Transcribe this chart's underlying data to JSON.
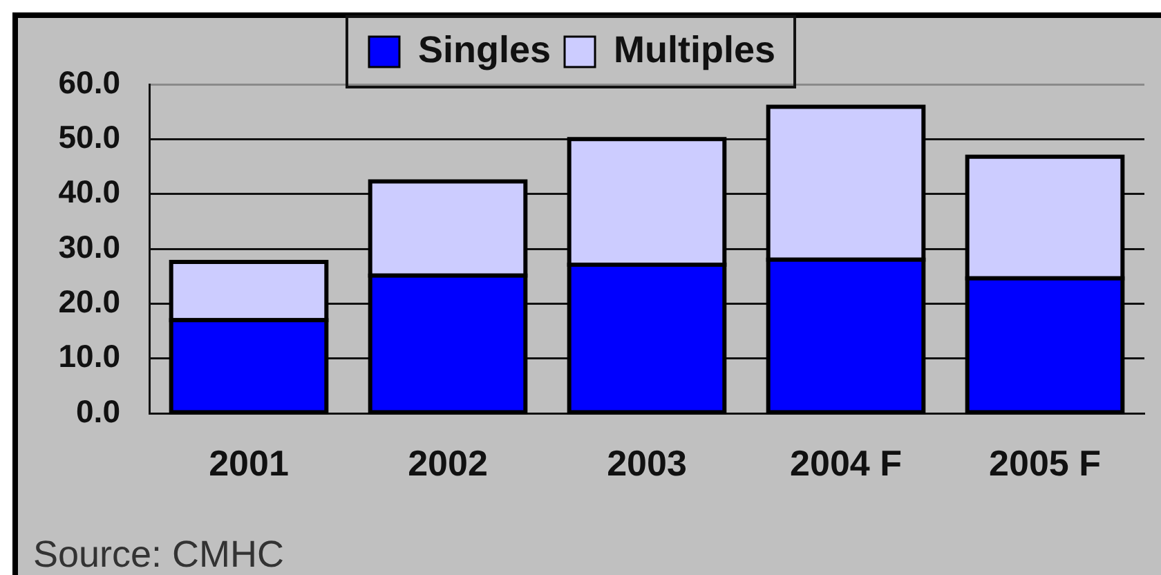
{
  "chart_data": {
    "type": "bar",
    "stacked": true,
    "categories": [
      "2001",
      "2002",
      "2003",
      "2004 F",
      "2005 F"
    ],
    "series": [
      {
        "name": "Singles",
        "color": "#0000ff",
        "values": [
          17.0,
          25.1,
          27.1,
          28.0,
          24.6
        ]
      },
      {
        "name": "Multiples",
        "color": "#ccccff",
        "values": [
          10.6,
          17.2,
          22.9,
          27.9,
          22.2
        ]
      }
    ],
    "ylim": [
      0,
      60
    ],
    "yticks": [
      {
        "value": 0,
        "label": "0.0"
      },
      {
        "value": 10,
        "label": "10.0"
      },
      {
        "value": 20,
        "label": "20.0"
      },
      {
        "value": 30,
        "label": "30.0"
      },
      {
        "value": 40,
        "label": "40.0"
      },
      {
        "value": 50,
        "label": "50.0"
      },
      {
        "value": 60,
        "label": "60.0"
      }
    ],
    "grid": "y",
    "legend": "top",
    "annotations": [
      "Source: CMHC"
    ]
  }
}
